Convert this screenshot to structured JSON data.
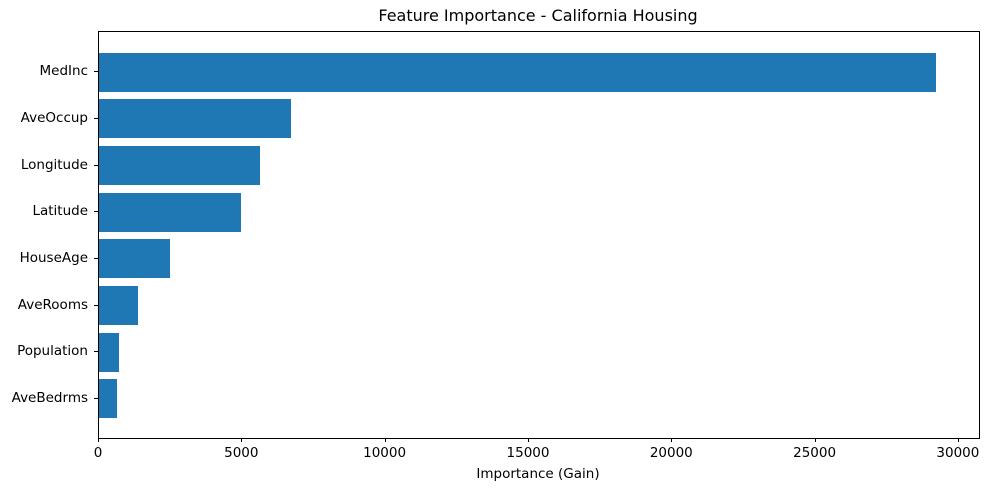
{
  "chart_data": {
    "type": "bar",
    "orientation": "horizontal",
    "title": "Feature Importance - California Housing",
    "xlabel": "Importance (Gain)",
    "ylabel": "",
    "categories": [
      "MedInc",
      "AveOccup",
      "Longitude",
      "Latitude",
      "HouseAge",
      "AveRooms",
      "Population",
      "AveBedrms"
    ],
    "values": [
      29200,
      6700,
      5600,
      4950,
      2470,
      1360,
      710,
      620
    ],
    "xticks": [
      0,
      5000,
      10000,
      15000,
      20000,
      25000,
      30000
    ],
    "xtick_labels": [
      "0",
      "5000",
      "10000",
      "15000",
      "20000",
      "25000",
      "30000"
    ],
    "xlim": [
      0,
      30700
    ],
    "grid": false,
    "legend_position": "none",
    "bar_color": "#1f77b4",
    "axis_color": "#000000",
    "background_color": "#ffffff"
  }
}
